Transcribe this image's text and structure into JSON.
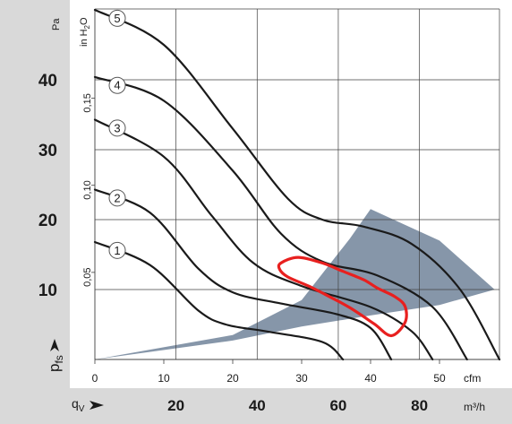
{
  "chart_data": {
    "type": "line",
    "ylabel": "p",
    "ylabel_subscript": "fs",
    "ylabel_alt_units": "in H",
    "ylabel_alt_subscript": "2",
    "ylabel_alt_suffix": "O",
    "ylabel_units": "Pa",
    "xlabel": "q",
    "xlabel_subscript": "V",
    "xlabel_units": "m³/h",
    "xlabel_alt_units": "cfm",
    "ylim": [
      0,
      50
    ],
    "xlim_cfm": [
      0,
      58.7
    ],
    "grid": true,
    "y_ticks_pa": [
      "10",
      "20",
      "30",
      "40"
    ],
    "y_ticks_inh2o": [
      "0,05",
      "0,10",
      "0,15"
    ],
    "x_ticks_cfm": [
      "0",
      "10",
      "20",
      "30",
      "40",
      "50"
    ],
    "x_ticks_m3h": [
      "20",
      "40",
      "60",
      "80"
    ],
    "operating_area": {
      "upper": [
        [
          0,
          0
        ],
        [
          20,
          3.5
        ],
        [
          30,
          8.5
        ],
        [
          37,
          17.3
        ],
        [
          40,
          21.5
        ],
        [
          50,
          17
        ],
        [
          58,
          10
        ]
      ],
      "lower": [
        [
          0,
          0
        ],
        [
          20,
          2.7
        ],
        [
          30,
          4.7
        ],
        [
          40,
          6.3
        ],
        [
          50,
          7.8
        ],
        [
          58,
          10
        ]
      ]
    },
    "series": [
      {
        "name": "1",
        "points": [
          [
            0,
            16.8
          ],
          [
            8,
            13.5
          ],
          [
            15,
            7
          ],
          [
            19,
            5
          ],
          [
            25,
            4
          ],
          [
            33,
            2.5
          ],
          [
            36,
            0
          ]
        ]
      },
      {
        "name": "2",
        "points": [
          [
            0,
            24.3
          ],
          [
            8,
            21
          ],
          [
            15,
            13
          ],
          [
            20,
            9.6
          ],
          [
            27,
            8
          ],
          [
            35,
            6.5
          ],
          [
            40,
            4.5
          ],
          [
            43,
            0
          ]
        ]
      },
      {
        "name": "3",
        "points": [
          [
            0,
            34.3
          ],
          [
            10,
            29
          ],
          [
            17,
            20.5
          ],
          [
            23,
            13.8
          ],
          [
            30,
            10.5
          ],
          [
            40,
            7.5
          ],
          [
            46,
            4
          ],
          [
            49,
            0
          ]
        ]
      },
      {
        "name": "4",
        "points": [
          [
            0,
            40.4
          ],
          [
            10,
            37
          ],
          [
            20,
            27
          ],
          [
            27,
            18
          ],
          [
            33,
            14
          ],
          [
            41,
            12
          ],
          [
            49,
            7.5
          ],
          [
            54,
            0
          ]
        ]
      },
      {
        "name": "5",
        "points": [
          [
            0,
            50
          ],
          [
            10,
            45
          ],
          [
            20,
            33
          ],
          [
            28,
            23
          ],
          [
            33,
            20
          ],
          [
            39,
            19
          ],
          [
            46,
            16.5
          ],
          [
            53,
            10
          ],
          [
            58.7,
            0
          ]
        ]
      }
    ],
    "annotation_loop": {
      "points": [
        [
          27,
          13.8
        ],
        [
          29.5,
          14.6
        ],
        [
          33,
          13.8
        ],
        [
          36,
          12.6
        ],
        [
          39,
          11.4
        ],
        [
          41,
          10.2
        ],
        [
          43.5,
          9
        ],
        [
          45,
          7.6
        ],
        [
          45,
          5.3
        ],
        [
          43,
          3.4
        ],
        [
          40.5,
          5.1
        ],
        [
          37,
          7.4
        ],
        [
          34,
          9
        ],
        [
          31,
          10.5
        ],
        [
          28,
          11.8
        ],
        [
          26.8,
          12.9
        ],
        [
          27,
          13.8
        ]
      ],
      "color": "#e8201f"
    },
    "colors": {
      "area_fill": "#8696a9",
      "band_fill": "#d9d9d9",
      "curve": "#1a1a1a",
      "grid": "#404040"
    }
  }
}
